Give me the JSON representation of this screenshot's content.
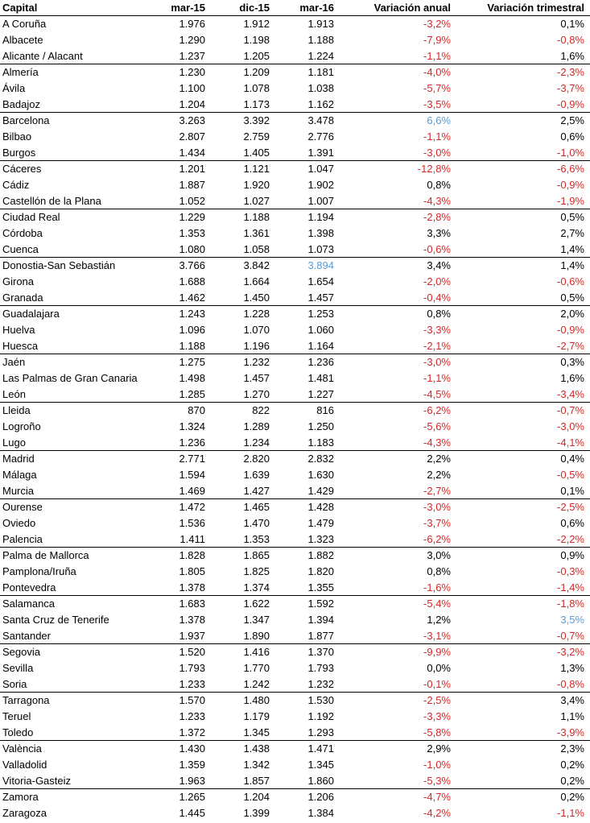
{
  "colors": {
    "negative": "#d62728",
    "highlight": "#5b9bd5",
    "text": "#000000"
  },
  "headers": [
    "Capital",
    "mar-15",
    "dic-15",
    "mar-16",
    "Variación anual",
    "Variación trimestral"
  ],
  "rows": [
    [
      "A Coruña",
      "1.976",
      "1.912",
      "1.913",
      "-3,2%",
      "0,1%"
    ],
    [
      "Albacete",
      "1.290",
      "1.198",
      "1.188",
      "-7,9%",
      "-0,8%"
    ],
    [
      "Alicante / Alacant",
      "1.237",
      "1.205",
      "1.224",
      "-1,1%",
      "1,6%"
    ],
    [
      "Almería",
      "1.230",
      "1.209",
      "1.181",
      "-4,0%",
      "-2,3%"
    ],
    [
      "Ávila",
      "1.100",
      "1.078",
      "1.038",
      "-5,7%",
      "-3,7%"
    ],
    [
      "Badajoz",
      "1.204",
      "1.173",
      "1.162",
      "-3,5%",
      "-0,9%"
    ],
    [
      "Barcelona",
      "3.263",
      "3.392",
      "3.478",
      "6,6%",
      "2,5%"
    ],
    [
      "Bilbao",
      "2.807",
      "2.759",
      "2.776",
      "-1,1%",
      "0,6%"
    ],
    [
      "Burgos",
      "1.434",
      "1.405",
      "1.391",
      "-3,0%",
      "-1,0%"
    ],
    [
      "Cáceres",
      "1.201",
      "1.121",
      "1.047",
      "-12,8%",
      "-6,6%"
    ],
    [
      "Cádiz",
      "1.887",
      "1.920",
      "1.902",
      "0,8%",
      "-0,9%"
    ],
    [
      "Castellón de la Plana",
      "1.052",
      "1.027",
      "1.007",
      "-4,3%",
      "-1,9%"
    ],
    [
      "Ciudad Real",
      "1.229",
      "1.188",
      "1.194",
      "-2,8%",
      "0,5%"
    ],
    [
      "Córdoba",
      "1.353",
      "1.361",
      "1.398",
      "3,3%",
      "2,7%"
    ],
    [
      "Cuenca",
      "1.080",
      "1.058",
      "1.073",
      "-0,6%",
      "1,4%"
    ],
    [
      "Donostia-San Sebastián",
      "3.766",
      "3.842",
      "3.894",
      "3,4%",
      "1,4%"
    ],
    [
      "Girona",
      "1.688",
      "1.664",
      "1.654",
      "-2,0%",
      "-0,6%"
    ],
    [
      "Granada",
      "1.462",
      "1.450",
      "1.457",
      "-0,4%",
      "0,5%"
    ],
    [
      "Guadalajara",
      "1.243",
      "1.228",
      "1.253",
      "0,8%",
      "2,0%"
    ],
    [
      "Huelva",
      "1.096",
      "1.070",
      "1.060",
      "-3,3%",
      "-0,9%"
    ],
    [
      "Huesca",
      "1.188",
      "1.196",
      "1.164",
      "-2,1%",
      "-2,7%"
    ],
    [
      "Jaén",
      "1.275",
      "1.232",
      "1.236",
      "-3,0%",
      "0,3%"
    ],
    [
      "Las Palmas de Gran Canaria",
      "1.498",
      "1.457",
      "1.481",
      "-1,1%",
      "1,6%"
    ],
    [
      "León",
      "1.285",
      "1.270",
      "1.227",
      "-4,5%",
      "-3,4%"
    ],
    [
      "Lleida",
      "870",
      "822",
      "816",
      "-6,2%",
      "-0,7%"
    ],
    [
      "Logroño",
      "1.324",
      "1.289",
      "1.250",
      "-5,6%",
      "-3,0%"
    ],
    [
      "Lugo",
      "1.236",
      "1.234",
      "1.183",
      "-4,3%",
      "-4,1%"
    ],
    [
      "Madrid",
      "2.771",
      "2.820",
      "2.832",
      "2,2%",
      "0,4%"
    ],
    [
      "Málaga",
      "1.594",
      "1.639",
      "1.630",
      "2,2%",
      "-0,5%"
    ],
    [
      "Murcia",
      "1.469",
      "1.427",
      "1.429",
      "-2,7%",
      "0,1%"
    ],
    [
      "Ourense",
      "1.472",
      "1.465",
      "1.428",
      "-3,0%",
      "-2,5%"
    ],
    [
      "Oviedo",
      "1.536",
      "1.470",
      "1.479",
      "-3,7%",
      "0,6%"
    ],
    [
      "Palencia",
      "1.411",
      "1.353",
      "1.323",
      "-6,2%",
      "-2,2%"
    ],
    [
      "Palma de Mallorca",
      "1.828",
      "1.865",
      "1.882",
      "3,0%",
      "0,9%"
    ],
    [
      "Pamplona/Iruña",
      "1.805",
      "1.825",
      "1.820",
      "0,8%",
      "-0,3%"
    ],
    [
      "Pontevedra",
      "1.378",
      "1.374",
      "1.355",
      "-1,6%",
      "-1,4%"
    ],
    [
      "Salamanca",
      "1.683",
      "1.622",
      "1.592",
      "-5,4%",
      "-1,8%"
    ],
    [
      "Santa Cruz de Tenerife",
      "1.378",
      "1.347",
      "1.394",
      "1,2%",
      "3,5%"
    ],
    [
      "Santander",
      "1.937",
      "1.890",
      "1.877",
      "-3,1%",
      "-0,7%"
    ],
    [
      "Segovia",
      "1.520",
      "1.416",
      "1.370",
      "-9,9%",
      "-3,2%"
    ],
    [
      "Sevilla",
      "1.793",
      "1.770",
      "1.793",
      "0,0%",
      "1,3%"
    ],
    [
      "Soria",
      "1.233",
      "1.242",
      "1.232",
      "-0,1%",
      "-0,8%"
    ],
    [
      "Tarragona",
      "1.570",
      "1.480",
      "1.530",
      "-2,5%",
      "3,4%"
    ],
    [
      "Teruel",
      "1.233",
      "1.179",
      "1.192",
      "-3,3%",
      "1,1%"
    ],
    [
      "Toledo",
      "1.372",
      "1.345",
      "1.293",
      "-5,8%",
      "-3,9%"
    ],
    [
      "València",
      "1.430",
      "1.438",
      "1.471",
      "2,9%",
      "2,3%"
    ],
    [
      "Valladolid",
      "1.359",
      "1.342",
      "1.345",
      "-1,0%",
      "0,2%"
    ],
    [
      "Vitoria-Gasteiz",
      "1.963",
      "1.857",
      "1.860",
      "-5,3%",
      "0,2%"
    ],
    [
      "Zamora",
      "1.265",
      "1.204",
      "1.206",
      "-4,7%",
      "0,2%"
    ],
    [
      "Zaragoza",
      "1.445",
      "1.399",
      "1.384",
      "-4,2%",
      "-1,1%"
    ]
  ],
  "group_ends": [
    2,
    5,
    8,
    11,
    14,
    17,
    20,
    23,
    26,
    29,
    32,
    35,
    38,
    41,
    44,
    47
  ],
  "highlighted_cells": [
    [
      6,
      4
    ],
    [
      15,
      3
    ],
    [
      37,
      5
    ]
  ]
}
